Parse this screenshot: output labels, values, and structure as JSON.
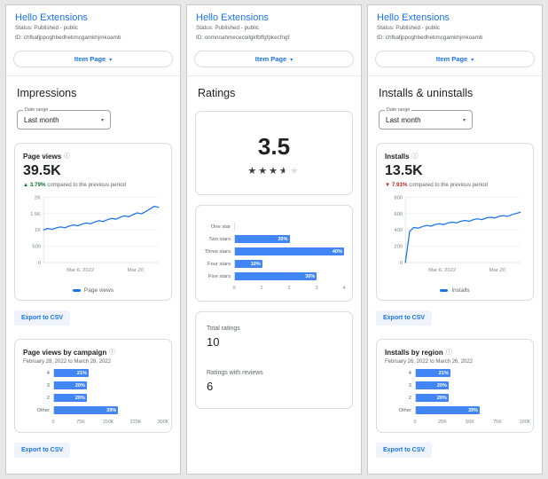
{
  "colors": {
    "accent": "#1a73e8",
    "bar": "#4285f4",
    "positive": "#137333",
    "negative": "#c5221f"
  },
  "icons": {
    "info": "ⓘ",
    "caret_down": "▾",
    "stars_row": "★★★★★"
  },
  "panels": [
    {
      "header": {
        "title": "Hello Extensions",
        "status": "Status: Published - public",
        "extension_id": "ID: chfkafjppoghbedhebmcgamkhjmkoamb"
      },
      "item_page_button": {
        "label": "Item Page"
      },
      "section_title": "Impressions",
      "date_range": {
        "label": "Date range",
        "value": "Last month"
      },
      "metric_card": {
        "title": "Page views",
        "value": "39.5K",
        "delta_arrow": "▲",
        "delta_direction": "up",
        "delta_percent": "3.79%",
        "delta_text": "compared to the previous period"
      },
      "export_label": "Export to CSV",
      "breakdown_card": {
        "title": "Page views by campaign",
        "subtitle": "February 28, 2022 to March 28, 2022"
      }
    },
    {
      "header": {
        "title": "Hello Extensions",
        "status": "Status: Published - public",
        "extension_id": "ID: onmnoahmececoilgkfbffgfpkecfngf"
      },
      "item_page_button": {
        "label": "Item Page"
      },
      "section_title": "Ratings",
      "summary_card": {
        "average": "3.5",
        "stars_out_of_5": 3.5
      },
      "totals_card": {
        "total_ratings_label": "Total ratings",
        "total_ratings_value": "10",
        "reviews_label": "Ratings with reviews",
        "reviews_value": "6"
      }
    },
    {
      "header": {
        "title": "Hello Extensions",
        "status": "Status: Published - public",
        "extension_id": "ID: chfkafjppoghbedhebmcgamkhjmkoamb"
      },
      "item_page_button": {
        "label": "Item Page"
      },
      "section_title": "Installs & uninstalls",
      "date_range": {
        "label": "Date range",
        "value": "Last month"
      },
      "metric_card": {
        "title": "Installs",
        "value": "13.5K",
        "delta_arrow": "▼",
        "delta_direction": "down",
        "delta_percent": "7.91%",
        "delta_text": "compared to the previous period"
      },
      "export_label": "Export to CSV",
      "breakdown_card": {
        "title": "Installs by region",
        "subtitle": "February 26, 2022 to March 26, 2022"
      }
    }
  ],
  "chart_data": [
    {
      "id": "page_views_line",
      "type": "line",
      "title": "Page views",
      "series": [
        {
          "name": "Page views",
          "values": [
            1000,
            1040,
            1015,
            1060,
            1090,
            1065,
            1115,
            1150,
            1125,
            1175,
            1210,
            1185,
            1240,
            1280,
            1255,
            1310,
            1350,
            1325,
            1385,
            1430,
            1400,
            1465,
            1520,
            1490,
            1560,
            1640,
            1720,
            1690
          ]
        }
      ],
      "ylim": [
        0,
        2000
      ],
      "y_ticks": [
        0,
        500,
        1000,
        1500,
        2000
      ],
      "y_tick_labels": [
        "0",
        "500",
        "1K",
        "1.5K",
        "2K"
      ],
      "x_tick_labels": [
        "Mar 6, 2022",
        "Mar 20"
      ],
      "x_tick_pos": [
        0.32,
        0.8
      ],
      "legend": "Page views",
      "line_color": "#1a73e8",
      "grid": true
    },
    {
      "id": "page_views_by_campaign",
      "type": "bar",
      "orientation": "horizontal",
      "title": "Page views by campaign",
      "subtitle": "February 28, 2022 to March 28, 2022",
      "categories": [
        "4",
        "3",
        "2",
        "Other"
      ],
      "values": [
        95000,
        90000,
        90000,
        176000
      ],
      "bar_labels": [
        "21%",
        "20%",
        "20%",
        "39%"
      ],
      "xlim": [
        0,
        300000
      ],
      "x_tick_labels": [
        "0",
        "75K",
        "150K",
        "225K",
        "300K"
      ],
      "bar_color": "#4285f4"
    },
    {
      "id": "ratings_distribution",
      "type": "bar",
      "orientation": "horizontal",
      "title": "Ratings distribution",
      "categories": [
        "One star",
        "Two stars",
        "Three stars",
        "Four stars",
        "Five stars"
      ],
      "values": [
        0,
        2,
        4,
        1,
        3
      ],
      "bar_labels": [
        "",
        "20%",
        "40%",
        "10%",
        "30%"
      ],
      "xlim": [
        0,
        4
      ],
      "x_tick_labels": [
        "0",
        "1",
        "2",
        "3",
        "4"
      ],
      "bar_color": "#4285f4"
    },
    {
      "id": "installs_line",
      "type": "line",
      "title": "Installs",
      "series": [
        {
          "name": "Installs",
          "values": [
            0,
            380,
            430,
            420,
            440,
            455,
            445,
            465,
            475,
            465,
            485,
            495,
            485,
            505,
            515,
            505,
            525,
            535,
            525,
            545,
            555,
            545,
            565,
            575,
            565,
            585,
            600,
            615
          ]
        }
      ],
      "ylim": [
        0,
        800
      ],
      "y_ticks": [
        0,
        200,
        400,
        600,
        800
      ],
      "y_tick_labels": [
        "0",
        "200",
        "400",
        "600",
        "800"
      ],
      "x_tick_labels": [
        "Mar 6, 2022",
        "Mar 20"
      ],
      "x_tick_pos": [
        0.32,
        0.8
      ],
      "legend": "Installs",
      "line_color": "#1a73e8",
      "grid": true
    },
    {
      "id": "installs_by_region",
      "type": "bar",
      "orientation": "horizontal",
      "title": "Installs by region",
      "subtitle": "February 26, 2022 to March 26, 2022",
      "categories": [
        "4",
        "3",
        "2",
        "Other"
      ],
      "values": [
        31500,
        30000,
        30000,
        58500
      ],
      "bar_labels": [
        "21%",
        "20%",
        "20%",
        "39%"
      ],
      "xlim": [
        0,
        100000
      ],
      "x_tick_labels": [
        "0",
        "25K",
        "50K",
        "75K",
        "100K"
      ],
      "bar_color": "#4285f4"
    }
  ]
}
